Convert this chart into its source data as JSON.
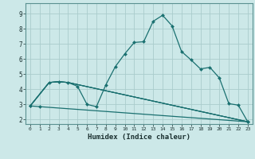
{
  "title": "",
  "xlabel": "Humidex (Indice chaleur)",
  "ylabel": "",
  "xlim": [
    -0.5,
    23.5
  ],
  "ylim": [
    1.7,
    9.7
  ],
  "background_color": "#cce8e8",
  "grid_color": "#aacccc",
  "line_color": "#1a7070",
  "xticks": [
    0,
    1,
    2,
    3,
    4,
    5,
    6,
    7,
    8,
    9,
    10,
    11,
    12,
    13,
    14,
    15,
    16,
    17,
    18,
    19,
    20,
    21,
    22,
    23
  ],
  "yticks": [
    2,
    3,
    4,
    5,
    6,
    7,
    8,
    9
  ],
  "line_styles": [
    {
      "lw": 0.9,
      "marker": "D",
      "ms": 2.0,
      "has_marker": true
    },
    {
      "lw": 0.9,
      "marker": "D",
      "ms": 2.0,
      "has_marker": true
    },
    {
      "lw": 0.8,
      "marker": null,
      "ms": 0,
      "has_marker": false
    },
    {
      "lw": 0.8,
      "marker": null,
      "ms": 0,
      "has_marker": false
    },
    {
      "lw": 0.8,
      "marker": null,
      "ms": 0,
      "has_marker": false
    }
  ],
  "lines": [
    {
      "x": [
        0,
        1,
        23
      ],
      "y": [
        2.9,
        2.85,
        1.85
      ]
    },
    {
      "x": [
        0,
        2,
        3,
        4,
        5,
        6,
        7,
        8,
        9,
        10,
        11,
        12,
        13,
        14,
        15,
        16,
        17,
        18,
        19,
        20,
        21,
        22,
        23
      ],
      "y": [
        2.9,
        4.45,
        4.5,
        4.45,
        4.2,
        3.0,
        2.85,
        4.3,
        5.5,
        6.35,
        7.1,
        7.15,
        8.5,
        8.9,
        8.2,
        6.5,
        5.95,
        5.35,
        5.45,
        4.75,
        3.05,
        2.95,
        1.85
      ]
    },
    {
      "x": [
        0,
        2,
        3,
        4,
        23
      ],
      "y": [
        2.9,
        4.45,
        4.5,
        4.45,
        1.85
      ]
    },
    {
      "x": [
        0,
        2,
        3,
        4,
        23
      ],
      "y": [
        2.9,
        4.45,
        4.5,
        4.45,
        1.85
      ]
    },
    {
      "x": [
        0,
        2,
        3,
        4,
        23
      ],
      "y": [
        2.9,
        4.45,
        4.5,
        4.45,
        1.85
      ]
    }
  ]
}
